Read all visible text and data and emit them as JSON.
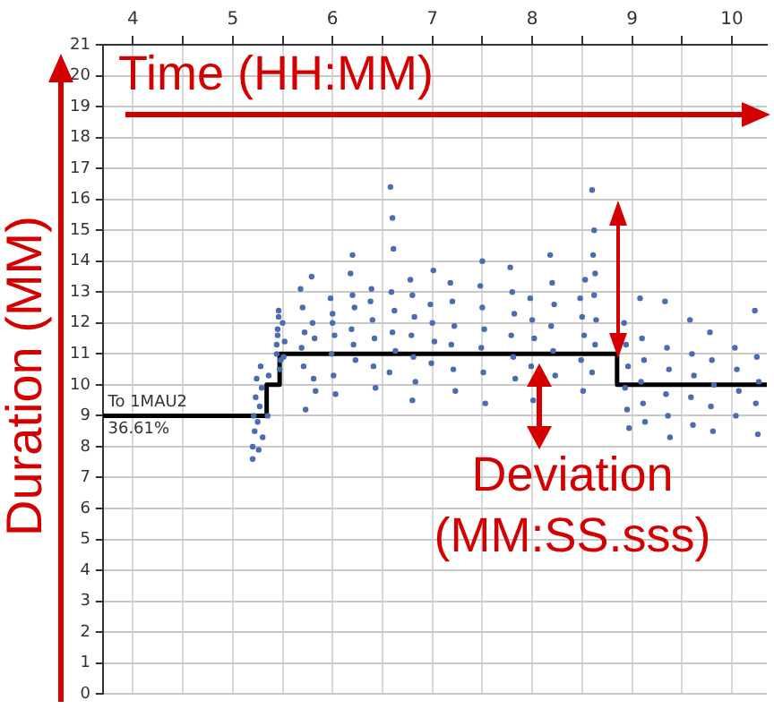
{
  "chart_data": {
    "type": "scatter",
    "xlabel": "Time (HH:MM)",
    "ylabel": "Duration (MM)",
    "annotations": [
      {
        "text": "To 1MAU2",
        "x": 3.75,
        "y": 9
      },
      {
        "text": "36.61%",
        "x": 3.75,
        "y": 9
      },
      "Deviation (MM:SS.sss)"
    ],
    "xlim": [
      3.7,
      10.35
    ],
    "ylim": [
      0,
      21
    ],
    "xticks": [
      4,
      {
        "value": 4.5,
        "label": null
      },
      5,
      {
        "value": 5.5,
        "label": null
      },
      6,
      {
        "value": 6.5,
        "label": null
      },
      7,
      {
        "value": 7.5,
        "label": null
      },
      8,
      {
        "value": 8.5,
        "label": null
      },
      9,
      {
        "value": 9.5,
        "label": null
      },
      10
    ],
    "yticks": [
      0,
      1,
      2,
      3,
      4,
      5,
      6,
      7,
      8,
      9,
      10,
      11,
      12,
      13,
      14,
      15,
      16,
      17,
      18,
      19,
      20,
      21
    ],
    "grid": true,
    "legend": false,
    "series": [
      {
        "color": "#4a6db0",
        "marker": "circle",
        "x": [
          5.2,
          5.22,
          5.21,
          5.23,
          5.24,
          5.2,
          5.25,
          5.27,
          5.29,
          5.28,
          5.3,
          5.26,
          5.35,
          5.36,
          5.44,
          5.45,
          5.46,
          5.44,
          5.47,
          5.45,
          5.46,
          5.48,
          5.5,
          5.52,
          5.51,
          5.68,
          5.7,
          5.72,
          5.69,
          5.71,
          5.73,
          5.8,
          5.82,
          5.79,
          5.81,
          5.83,
          5.98,
          6.0,
          6.02,
          5.99,
          6.01,
          6.03,
          6.0,
          6.18,
          6.2,
          6.22,
          6.19,
          6.21,
          6.23,
          6.2,
          6.38,
          6.4,
          6.42,
          6.39,
          6.41,
          6.43,
          6.58,
          6.6,
          6.61,
          6.59,
          6.62,
          6.6,
          6.63,
          6.57,
          6.78,
          6.8,
          6.82,
          6.79,
          6.81,
          6.83,
          6.8,
          6.98,
          7.0,
          7.02,
          6.99,
          7.01,
          7.18,
          7.2,
          7.22,
          7.19,
          7.21,
          7.23,
          7.48,
          7.5,
          7.52,
          7.49,
          7.51,
          7.53,
          7.5,
          7.78,
          7.8,
          7.82,
          7.79,
          7.81,
          7.83,
          7.98,
          8.0,
          8.02,
          7.99,
          8.01,
          8.18,
          8.2,
          8.22,
          8.19,
          8.21,
          8.23,
          8.48,
          8.5,
          8.52,
          8.49,
          8.51,
          8.53,
          8.6,
          8.62,
          8.61,
          8.63,
          8.62,
          8.64,
          8.63,
          8.6,
          8.92,
          8.94,
          8.96,
          8.93,
          8.95,
          8.97,
          9.08,
          9.1,
          9.12,
          9.09,
          9.11,
          9.13,
          9.33,
          9.35,
          9.37,
          9.34,
          9.36,
          9.38,
          9.58,
          9.6,
          9.62,
          9.59,
          9.61,
          9.78,
          9.8,
          9.82,
          9.79,
          9.81,
          10.03,
          10.05,
          10.07,
          10.04,
          10.23,
          10.25,
          10.27,
          10.24,
          10.26
        ],
        "values": [
          8.0,
          8.5,
          9.0,
          9.6,
          10.2,
          7.6,
          8.8,
          9.3,
          9.9,
          10.6,
          8.3,
          7.9,
          9.0,
          10.3,
          11.3,
          11.8,
          12.2,
          11.0,
          10.5,
          11.6,
          12.4,
          10.8,
          12.0,
          11.4,
          10.9,
          13.1,
          12.5,
          11.7,
          11.2,
          10.6,
          9.2,
          12.0,
          11.5,
          13.5,
          10.2,
          9.8,
          12.8,
          12.3,
          11.6,
          11.0,
          10.3,
          9.7,
          12.0,
          13.6,
          12.9,
          12.5,
          11.8,
          11.3,
          10.8,
          14.2,
          12.7,
          12.1,
          11.5,
          13.1,
          10.6,
          9.9,
          16.4,
          15.4,
          14.4,
          13.0,
          12.4,
          11.7,
          11.1,
          10.4,
          13.4,
          12.9,
          12.2,
          11.6,
          10.9,
          10.1,
          9.5,
          12.6,
          12.0,
          11.4,
          10.7,
          13.7,
          13.3,
          12.7,
          11.9,
          11.3,
          10.5,
          9.8,
          13.2,
          12.5,
          11.8,
          11.2,
          10.4,
          9.4,
          14.0,
          13.8,
          13.0,
          12.3,
          11.6,
          10.9,
          10.2,
          12.8,
          12.1,
          11.5,
          10.6,
          9.5,
          14.2,
          13.3,
          12.6,
          11.9,
          11.1,
          10.3,
          12.8,
          12.2,
          11.6,
          10.8,
          9.8,
          13.4,
          16.3,
          15.0,
          14.2,
          13.6,
          12.9,
          12.1,
          11.3,
          10.4,
          12.0,
          11.3,
          10.6,
          9.9,
          9.2,
          8.6,
          12.8,
          11.5,
          10.8,
          10.1,
          9.4,
          8.8,
          12.7,
          11.2,
          10.5,
          9.7,
          9.0,
          8.3,
          12.1,
          11.0,
          10.3,
          9.6,
          8.7,
          11.7,
          10.8,
          10.0,
          9.3,
          8.5,
          11.2,
          10.5,
          9.8,
          9.0,
          12.4,
          10.9,
          10.1,
          9.4,
          8.4
        ]
      },
      {
        "type": "step",
        "color": "#000000",
        "marker": "none",
        "x": [
          3.7,
          5.34,
          5.47,
          8.85,
          10.35
        ],
        "values": [
          9,
          10,
          11,
          10,
          10
        ]
      }
    ]
  }
}
